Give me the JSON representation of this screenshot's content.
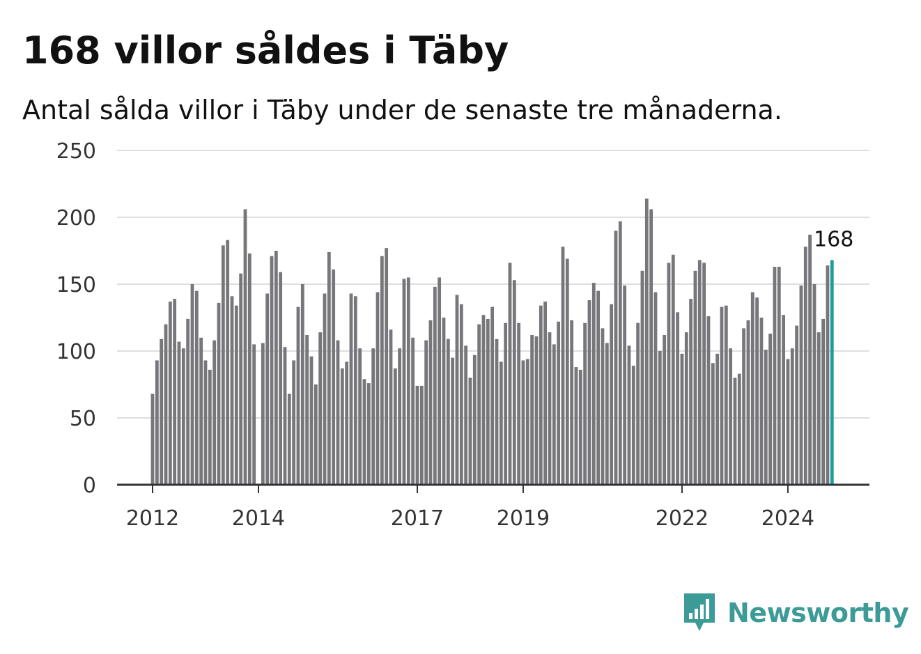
{
  "header": {
    "title": "168 villor såldes i Täby",
    "subtitle": "Antal sålda villor i Täby under de senaste tre månaderna."
  },
  "brand": {
    "name": "Newsworthy",
    "color": "#3d9b97",
    "icon": "bar-chart-speech-bubble-icon"
  },
  "colors": {
    "bar": "#76767b",
    "highlight": "#1a9e9e",
    "grid": "#dedede",
    "axis": "#333333"
  },
  "chart_data": {
    "type": "bar",
    "title": "168 villor såldes i Täby",
    "subtitle": "Antal sålda villor i Täby under de senaste tre månaderna.",
    "xlabel": "",
    "ylabel": "",
    "ylim": [
      0,
      250
    ],
    "yticks": [
      0,
      50,
      100,
      150,
      200,
      250
    ],
    "xticks": [
      "2012",
      "2014",
      "2017",
      "2019",
      "2022",
      "2024"
    ],
    "grid": true,
    "highlight": {
      "label": "168",
      "value": 168
    },
    "values": [
      68,
      93,
      109,
      120,
      137,
      139,
      107,
      102,
      124,
      150,
      145,
      110,
      93,
      86,
      108,
      136,
      179,
      183,
      141,
      134,
      158,
      206,
      173,
      105,
      0,
      106,
      143,
      171,
      175,
      159,
      103,
      68,
      93,
      133,
      150,
      112,
      96,
      75,
      114,
      143,
      174,
      161,
      108,
      87,
      92,
      143,
      141,
      102,
      79,
      76,
      102,
      144,
      171,
      177,
      116,
      87,
      102,
      154,
      155,
      110,
      74,
      74,
      108,
      123,
      148,
      155,
      125,
      109,
      95,
      142,
      135,
      104,
      80,
      97,
      120,
      127,
      124,
      133,
      109,
      92,
      121,
      166,
      153,
      121,
      93,
      94,
      112,
      111,
      134,
      137,
      114,
      105,
      122,
      178,
      169,
      123,
      88,
      86,
      121,
      138,
      151,
      145,
      117,
      106,
      135,
      190,
      197,
      149,
      104,
      89,
      121,
      160,
      214,
      206,
      144,
      100,
      112,
      166,
      172,
      129,
      98,
      114,
      139,
      160,
      168,
      166,
      126,
      91,
      98,
      133,
      134,
      102,
      80,
      83,
      117,
      123,
      144,
      140,
      125,
      101,
      113,
      163,
      163,
      127,
      94,
      102,
      119,
      149,
      178,
      187,
      150,
      114,
      124,
      164,
      168
    ]
  }
}
